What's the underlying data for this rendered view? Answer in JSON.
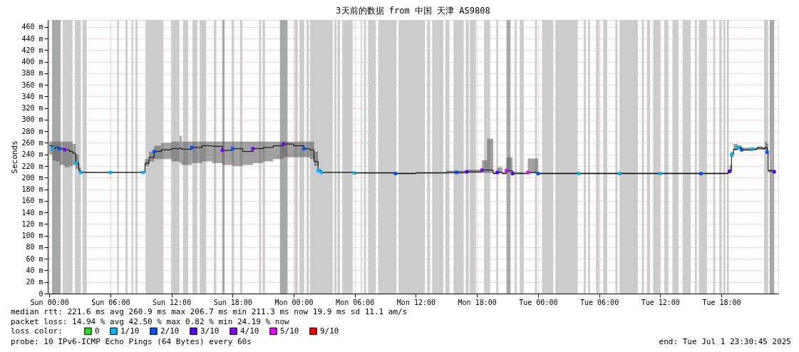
{
  "chart_data": {
    "type": "step",
    "title": "3天前的数据 from 中国 天津 AS9808",
    "ylabel": "Seconds",
    "xlim": [
      "2025-06-28T23:51",
      "2025-07-01T23:36"
    ],
    "ylim": [
      0,
      472
    ],
    "xticks": [
      {
        "value": "2025-06-29T00:00",
        "label": "Sun 00:00"
      },
      {
        "value": "2025-06-29T06:00",
        "label": "Sun 06:00"
      },
      {
        "value": "2025-06-29T12:00",
        "label": "Sun 12:00"
      },
      {
        "value": "2025-06-29T18:00",
        "label": "Sun 18:00"
      },
      {
        "value": "2025-06-30T00:00",
        "label": "Mon 00:00"
      },
      {
        "value": "2025-06-30T06:00",
        "label": "Mon 06:00"
      },
      {
        "value": "2025-06-30T12:00",
        "label": "Mon 12:00"
      },
      {
        "value": "2025-06-30T18:00",
        "label": "Mon 18:00"
      },
      {
        "value": "2025-07-01T00:00",
        "label": "Tue 00:00"
      },
      {
        "value": "2025-07-01T06:00",
        "label": "Tue 06:00"
      },
      {
        "value": "2025-07-01T12:00",
        "label": "Tue 12:00"
      },
      {
        "value": "2025-07-01T18:00",
        "label": "Tue 18:00"
      }
    ],
    "yticks": [
      0,
      {
        "value": 20,
        "label": "20 m"
      },
      {
        "value": 40,
        "label": "40 m"
      },
      {
        "value": 60,
        "label": "60 m"
      },
      {
        "value": 80,
        "label": "80 m"
      },
      {
        "value": 100,
        "label": "100 m"
      },
      {
        "value": 120,
        "label": "120 m"
      },
      {
        "value": 140,
        "label": "140 m"
      },
      {
        "value": 160,
        "label": "160 m"
      },
      {
        "value": 180,
        "label": "180 m"
      },
      {
        "value": 200,
        "label": "200 m"
      },
      {
        "value": 220,
        "label": "220 m"
      },
      {
        "value": 240,
        "label": "240 m"
      },
      {
        "value": 260,
        "label": "260 m"
      },
      {
        "value": 280,
        "label": "280 m"
      },
      {
        "value": 300,
        "label": "300 m"
      },
      {
        "value": 320,
        "label": "320 m"
      },
      {
        "value": 340,
        "label": "340 m"
      },
      {
        "value": 360,
        "label": "360 m"
      },
      {
        "value": 380,
        "label": "380 m"
      },
      {
        "value": 400,
        "label": "400 m"
      },
      {
        "value": 420,
        "label": "420 m"
      },
      {
        "value": 440,
        "label": "440 m"
      },
      {
        "value": 460,
        "label": "460 m"
      }
    ],
    "grid": true,
    "legend": "bottom",
    "legend_title": "loss color:",
    "series": [
      {
        "color": "#000000",
        "x": [
          "2025-06-29T00:00",
          "2025-06-29T00:18",
          "2025-06-29T00:36",
          "2025-06-29T01:00",
          "2025-06-29T01:30",
          "2025-06-29T02:00",
          "2025-06-29T02:18",
          "2025-06-29T02:36",
          "2025-06-29T02:54",
          "2025-06-29T03:06",
          "2025-06-29T06:00",
          "2025-06-29T09:12",
          "2025-06-29T09:24",
          "2025-06-29T09:48",
          "2025-06-29T10:18",
          "2025-06-29T11:00",
          "2025-06-29T12:00",
          "2025-06-29T12:48",
          "2025-06-29T13:00",
          "2025-06-29T14:00",
          "2025-06-29T15:00",
          "2025-06-29T16:00",
          "2025-06-29T17:00",
          "2025-06-29T18:00",
          "2025-06-29T19:00",
          "2025-06-29T20:00",
          "2025-06-29T21:00",
          "2025-06-29T22:00",
          "2025-06-29T23:00",
          "2025-06-30T00:00",
          "2025-06-30T01:00",
          "2025-06-30T01:36",
          "2025-06-30T02:00",
          "2025-06-30T02:24",
          "2025-06-30T02:42",
          "2025-06-30T06:00",
          "2025-06-30T10:00",
          "2025-06-30T12:00",
          "2025-06-30T14:00",
          "2025-06-30T15:00",
          "2025-06-30T16:00",
          "2025-06-30T17:00",
          "2025-06-30T18:30",
          "2025-06-30T19:00",
          "2025-06-30T19:36",
          "2025-06-30T20:00",
          "2025-06-30T20:30",
          "2025-06-30T20:54",
          "2025-06-30T21:30",
          "2025-06-30T22:30",
          "2025-06-30T23:00",
          "2025-07-01T00:00",
          "2025-07-01T04:00",
          "2025-07-01T08:00",
          "2025-07-01T12:00",
          "2025-07-01T16:00",
          "2025-07-01T18:36",
          "2025-07-01T18:48",
          "2025-07-01T19:00",
          "2025-07-01T19:12",
          "2025-07-01T19:36",
          "2025-07-01T20:00",
          "2025-07-01T21:00",
          "2025-07-01T21:30",
          "2025-07-01T22:00",
          "2025-07-01T22:18",
          "2025-07-01T22:30",
          "2025-07-01T22:36",
          "2025-07-01T23:12"
        ],
        "values": [
          255,
          250,
          252,
          250,
          248,
          245,
          242,
          225,
          212,
          209,
          209,
          209,
          225,
          235,
          245,
          248,
          250,
          251,
          249,
          252,
          255,
          254,
          247,
          250,
          245,
          250,
          252,
          255,
          258,
          255,
          250,
          248,
          228,
          212,
          209,
          208,
          207,
          208,
          208,
          209,
          209,
          210,
          213,
          213,
          207,
          209,
          207,
          212,
          207,
          207,
          209,
          207,
          207,
          207,
          207,
          207,
          208,
          211,
          240,
          249,
          252,
          248,
          249,
          251,
          250,
          252,
          244,
          212,
          210
        ],
        "lower": [
          240,
          230,
          228,
          222,
          218,
          220,
          222,
          215,
          209,
          208,
          208,
          208,
          220,
          228,
          232,
          232,
          228,
          225,
          222,
          225,
          228,
          225,
          222,
          220,
          222,
          225,
          228,
          232,
          235,
          235,
          235,
          232,
          220,
          210,
          208,
          207,
          206,
          207,
          207,
          207,
          207,
          208,
          208,
          208,
          206,
          207,
          206,
          208,
          206,
          206,
          207,
          206,
          206,
          206,
          206,
          206,
          207,
          208,
          235,
          247,
          248,
          246,
          247,
          248,
          248,
          248,
          240,
          209,
          208
        ],
        "upper": [
          262,
          262,
          262,
          262,
          262,
          262,
          258,
          240,
          218,
          210,
          210,
          210,
          232,
          245,
          255,
          260,
          262,
          272,
          262,
          262,
          262,
          262,
          262,
          262,
          262,
          262,
          262,
          262,
          262,
          262,
          262,
          262,
          245,
          215,
          210,
          210,
          209,
          210,
          210,
          212,
          212,
          214,
          230,
          267,
          210,
          218,
          210,
          235,
          210,
          209,
          233,
          209,
          209,
          209,
          209,
          209,
          211,
          222,
          245,
          258,
          256,
          252,
          252,
          254,
          253,
          262,
          258,
          214,
          212
        ]
      },
      {
        "type": "scatter",
        "marker": "square",
        "name": "0",
        "color": "#22dd22"
      },
      {
        "type": "scatter",
        "marker": "square",
        "name": "1/10",
        "color": "#00b4ff",
        "x": [
          "2025-06-29T00:18",
          "2025-06-29T02:36",
          "2025-06-29T03:06",
          "2025-06-29T06:00",
          "2025-06-29T09:12",
          "2025-06-30T02:24",
          "2025-06-30T02:42",
          "2025-06-30T06:00",
          "2025-07-01T04:00",
          "2025-07-01T08:00",
          "2025-07-01T12:00",
          "2025-07-01T19:00",
          "2025-07-01T19:36",
          "2025-07-01T21:00"
        ],
        "values": [
          250,
          225,
          209,
          209,
          209,
          212,
          209,
          208,
          207,
          207,
          207,
          240,
          252,
          249
        ]
      },
      {
        "type": "scatter",
        "marker": "square",
        "name": "2/10",
        "color": "#0050ff",
        "x": [
          "2025-06-29T01:00",
          "2025-06-29T10:18",
          "2025-06-29T14:00",
          "2025-06-29T18:00",
          "2025-06-30T01:00",
          "2025-06-30T10:00",
          "2025-06-30T16:00",
          "2025-07-01T00:00",
          "2025-07-01T16:00",
          "2025-07-01T20:00",
          "2025-07-01T22:30"
        ],
        "values": [
          250,
          245,
          252,
          250,
          250,
          207,
          209,
          207,
          207,
          248,
          244
        ]
      },
      {
        "type": "scatter",
        "marker": "square",
        "name": "3/10",
        "color": "#5500ff",
        "x": [
          "2025-06-30T17:00",
          "2025-06-30T20:00",
          "2025-06-30T21:30",
          "2025-07-01T18:48",
          "2025-07-01T23:12"
        ],
        "values": [
          210,
          209,
          207,
          211,
          210
        ]
      },
      {
        "type": "scatter",
        "marker": "square",
        "name": "4/10",
        "color": "#8000ff",
        "x": [
          "2025-06-29T01:30",
          "2025-06-29T17:00",
          "2025-06-29T20:00",
          "2025-06-29T23:00",
          "2025-06-30T18:30"
        ],
        "values": [
          248,
          247,
          250,
          258,
          213
        ]
      },
      {
        "type": "scatter",
        "marker": "square",
        "name": "5/10",
        "color": "#e000ff",
        "x": [
          "2025-06-30T20:54",
          "2025-06-30T23:00"
        ],
        "values": [
          212,
          209
        ]
      },
      {
        "type": "scatter",
        "marker": "square",
        "name": "9/10",
        "color": "#ff0000"
      }
    ],
    "bands": [
      {
        "axis": "x",
        "from": "2025-06-29T00:16",
        "to": "2025-06-29T01:07",
        "color": "#a8a8a8"
      },
      {
        "axis": "x",
        "from": "2025-06-29T01:19",
        "to": "2025-06-29T02:17"
      },
      {
        "axis": "x",
        "from": "2025-06-29T02:31",
        "to": "2025-06-29T03:06"
      },
      {
        "axis": "x",
        "from": "2025-06-29T03:16",
        "to": "2025-06-29T03:41"
      },
      {
        "axis": "x",
        "from": "2025-06-29T06:40",
        "to": "2025-06-29T06:50"
      },
      {
        "axis": "x",
        "from": "2025-06-29T07:29",
        "to": "2025-06-29T07:41"
      },
      {
        "axis": "x",
        "from": "2025-06-29T08:04",
        "to": "2025-06-29T08:14"
      },
      {
        "axis": "x",
        "from": "2025-06-29T08:28",
        "to": "2025-06-29T08:40"
      },
      {
        "axis": "x",
        "from": "2025-06-29T09:27",
        "to": "2025-06-29T11:13"
      },
      {
        "axis": "x",
        "from": "2025-06-29T11:58",
        "to": "2025-06-29T12:47"
      },
      {
        "axis": "x",
        "from": "2025-06-29T13:08",
        "to": "2025-06-29T13:39"
      },
      {
        "axis": "x",
        "from": "2025-06-29T14:04",
        "to": "2025-06-29T14:32"
      },
      {
        "axis": "x",
        "from": "2025-06-29T14:46",
        "to": "2025-06-29T15:25"
      },
      {
        "axis": "x",
        "from": "2025-06-29T16:10",
        "to": "2025-06-29T16:24"
      },
      {
        "axis": "x",
        "from": "2025-06-29T16:59",
        "to": "2025-06-29T17:13",
        "color": "#a8a8a8"
      },
      {
        "axis": "x",
        "from": "2025-06-29T17:55",
        "to": "2025-06-29T18:09"
      },
      {
        "axis": "x",
        "from": "2025-06-29T18:44",
        "to": "2025-06-29T18:58"
      },
      {
        "axis": "x",
        "from": "2025-06-29T20:36",
        "to": "2025-06-29T20:48"
      },
      {
        "axis": "x",
        "from": "2025-06-29T20:57",
        "to": "2025-06-29T21:11"
      },
      {
        "axis": "x",
        "from": "2025-06-29T22:39",
        "to": "2025-06-29T23:24",
        "color": "#a8a8a8"
      },
      {
        "axis": "x",
        "from": "2025-06-30T00:06",
        "to": "2025-06-30T00:24"
      },
      {
        "axis": "x",
        "from": "2025-06-30T00:34",
        "to": "2025-06-30T01:02"
      },
      {
        "axis": "x",
        "from": "2025-06-30T01:16",
        "to": "2025-06-30T01:30"
      },
      {
        "axis": "x",
        "from": "2025-06-30T01:36",
        "to": "2025-06-30T03:50"
      },
      {
        "axis": "x",
        "from": "2025-06-30T04:00",
        "to": "2025-06-30T04:12"
      },
      {
        "axis": "x",
        "from": "2025-06-30T04:18",
        "to": "2025-06-30T04:33"
      },
      {
        "axis": "x",
        "from": "2025-06-30T04:46",
        "to": "2025-06-30T05:48"
      },
      {
        "axis": "x",
        "from": "2025-06-30T06:36",
        "to": "2025-06-30T06:42"
      },
      {
        "axis": "x",
        "from": "2025-06-30T06:54",
        "to": "2025-06-30T07:06"
      },
      {
        "axis": "x",
        "from": "2025-06-30T07:18",
        "to": "2025-06-30T08:04"
      },
      {
        "axis": "x",
        "from": "2025-06-30T08:18",
        "to": "2025-06-30T10:06"
      },
      {
        "axis": "x",
        "from": "2025-06-30T10:18",
        "to": "2025-06-30T12:54"
      },
      {
        "axis": "x",
        "from": "2025-06-30T13:06",
        "to": "2025-06-30T13:24"
      },
      {
        "axis": "x",
        "from": "2025-06-30T13:36",
        "to": "2025-06-30T14:42"
      },
      {
        "axis": "x",
        "from": "2025-06-30T14:54",
        "to": "2025-06-30T15:18"
      },
      {
        "axis": "x",
        "from": "2025-06-30T15:42",
        "to": "2025-06-30T16:42"
      },
      {
        "axis": "x",
        "from": "2025-06-30T16:54",
        "to": "2025-06-30T17:12"
      },
      {
        "axis": "x",
        "from": "2025-06-30T17:18",
        "to": "2025-06-30T17:54"
      },
      {
        "axis": "x",
        "from": "2025-06-30T18:42",
        "to": "2025-06-30T19:18"
      },
      {
        "axis": "x",
        "from": "2025-06-30T19:54",
        "to": "2025-06-30T20:06"
      },
      {
        "axis": "x",
        "from": "2025-06-30T20:54",
        "to": "2025-06-30T21:18",
        "color": "#a8a8a8"
      },
      {
        "axis": "x",
        "from": "2025-06-30T21:42",
        "to": "2025-06-30T21:54"
      },
      {
        "axis": "x",
        "from": "2025-06-30T22:12",
        "to": "2025-06-30T22:36"
      },
      {
        "axis": "x",
        "from": "2025-06-30T23:42",
        "to": "2025-06-30T23:54"
      },
      {
        "axis": "x",
        "from": "2025-07-01T00:24",
        "to": "2025-07-01T01:30"
      },
      {
        "axis": "x",
        "from": "2025-07-01T01:42",
        "to": "2025-07-01T03:54"
      },
      {
        "axis": "x",
        "from": "2025-07-01T04:30",
        "to": "2025-07-01T04:42"
      },
      {
        "axis": "x",
        "from": "2025-07-01T04:54",
        "to": "2025-07-01T05:06"
      },
      {
        "axis": "x",
        "from": "2025-07-01T05:42",
        "to": "2025-07-01T06:00"
      },
      {
        "axis": "x",
        "from": "2025-07-01T06:24",
        "to": "2025-07-01T06:48"
      },
      {
        "axis": "x",
        "from": "2025-07-01T07:36",
        "to": "2025-07-01T07:48"
      },
      {
        "axis": "x",
        "from": "2025-07-01T08:00",
        "to": "2025-07-01T09:48"
      },
      {
        "axis": "x",
        "from": "2025-07-01T10:12",
        "to": "2025-07-01T10:24"
      },
      {
        "axis": "x",
        "from": "2025-07-01T10:42",
        "to": "2025-07-01T11:00"
      },
      {
        "axis": "x",
        "from": "2025-07-01T11:18",
        "to": "2025-07-01T12:00"
      },
      {
        "axis": "x",
        "from": "2025-07-01T12:24",
        "to": "2025-07-01T12:48"
      },
      {
        "axis": "x",
        "from": "2025-07-01T13:12",
        "to": "2025-07-01T13:48"
      },
      {
        "axis": "x",
        "from": "2025-07-01T14:12",
        "to": "2025-07-01T15:00"
      },
      {
        "axis": "x",
        "from": "2025-07-01T15:24",
        "to": "2025-07-01T15:36"
      },
      {
        "axis": "x",
        "from": "2025-07-01T15:48",
        "to": "2025-07-01T16:36"
      },
      {
        "axis": "x",
        "from": "2025-07-01T17:12",
        "to": "2025-07-01T17:24"
      },
      {
        "axis": "x",
        "from": "2025-07-01T17:48",
        "to": "2025-07-01T18:00"
      },
      {
        "axis": "x",
        "from": "2025-07-01T18:12",
        "to": "2025-07-01T18:24"
      },
      {
        "axis": "x",
        "from": "2025-07-01T18:36",
        "to": "2025-07-01T18:42",
        "color": "#a8a8a8"
      },
      {
        "axis": "x",
        "from": "2025-07-01T22:12",
        "to": "2025-07-01T22:36"
      },
      {
        "axis": "x",
        "from": "2025-07-01T22:45",
        "to": "2025-07-01T23:12",
        "color": "#a8a8a8"
      }
    ],
    "annotations": [
      "median rtt:  221.6 ms avg  260.9 ms max  206.7 ms min  211.3 ms now  19.9 ms sd  11.1   am/s",
      "packet loss: 14.94 % avg  42.50 % max  0.82 % min  24.19 % now",
      "probe:       10 IPv6-ICMP Echo Pings (64 Bytes) every 60s",
      "end: Tue Jul  1 23:30:45 2025"
    ]
  }
}
